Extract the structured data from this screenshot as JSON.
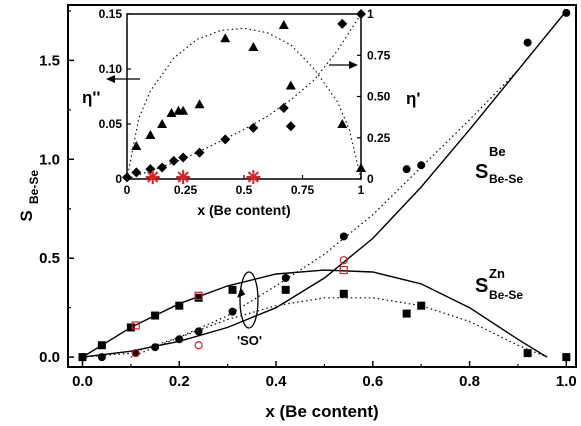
{
  "chart_data": [
    {
      "type": "scatter",
      "xlabel": "x (Be content)",
      "ylabel": "S",
      "ylabel_sub": "Be-Se",
      "xlim": [
        -0.03,
        1.02
      ],
      "ylim": [
        -0.05,
        1.78
      ],
      "x_ticks": [
        "0.0",
        "0.2",
        "0.4",
        "0.6",
        "0.8",
        "1.0"
      ],
      "y_ticks": [
        "0.0",
        "0.5",
        "1.0",
        "1.5"
      ],
      "series": [
        {
          "name": "S^Be_Be-Se",
          "marker": "filled-circle",
          "x": [
            0.0,
            0.04,
            0.11,
            0.15,
            0.2,
            0.24,
            0.31,
            0.42,
            0.54,
            0.67,
            0.7,
            0.92,
            1.0
          ],
          "y": [
            0.0,
            0.0,
            0.02,
            0.05,
            0.09,
            0.13,
            0.23,
            0.4,
            0.61,
            0.95,
            0.97,
            1.59,
            1.74
          ]
        },
        {
          "name": "S^Zn_Be-Se",
          "marker": "filled-square",
          "x": [
            0.0,
            0.04,
            0.1,
            0.15,
            0.2,
            0.24,
            0.31,
            0.42,
            0.54,
            0.67,
            0.7,
            0.92,
            1.0
          ],
          "y": [
            0.0,
            0.06,
            0.15,
            0.21,
            0.26,
            0.3,
            0.34,
            0.34,
            0.32,
            0.22,
            0.26,
            0.02,
            0.0
          ]
        },
        {
          "name": "open-circle",
          "marker": "open-circle",
          "color": "#d62020",
          "x": [
            0.11,
            0.24,
            0.54
          ],
          "y": [
            0.02,
            0.06,
            0.49
          ]
        },
        {
          "name": "open-square",
          "marker": "open-square",
          "color": "#d62020",
          "x": [
            0.11,
            0.24,
            0.54
          ],
          "y": [
            0.16,
            0.31,
            0.44
          ]
        },
        {
          "name": "solid-curve-Be",
          "style": "solid-line",
          "x": [
            0.0,
            0.1,
            0.2,
            0.3,
            0.4,
            0.5,
            0.6,
            0.7,
            0.8,
            0.9,
            1.0
          ],
          "y": [
            0.0,
            0.03,
            0.08,
            0.15,
            0.25,
            0.4,
            0.6,
            0.86,
            1.15,
            1.45,
            1.75
          ]
        },
        {
          "name": "solid-curve-Zn",
          "style": "solid-line",
          "x": [
            0.0,
            0.1,
            0.2,
            0.3,
            0.4,
            0.5,
            0.6,
            0.7,
            0.8,
            0.9,
            0.96
          ],
          "y": [
            0.0,
            0.15,
            0.27,
            0.36,
            0.42,
            0.44,
            0.43,
            0.37,
            0.25,
            0.09,
            0.0
          ]
        },
        {
          "name": "dotted-curve-Be",
          "style": "dotted-line",
          "x": [
            0.0,
            0.1,
            0.2,
            0.3,
            0.4,
            0.5,
            0.6,
            0.7,
            0.8,
            0.9,
            1.0
          ],
          "y": [
            0.0,
            0.02,
            0.1,
            0.21,
            0.36,
            0.52,
            0.72,
            0.96,
            1.2,
            1.45,
            1.75
          ]
        },
        {
          "name": "dotted-curve-Zn",
          "style": "dotted-line",
          "x": [
            0.1,
            0.2,
            0.3,
            0.4,
            0.5,
            0.6,
            0.7,
            0.8,
            0.9,
            0.96
          ],
          "y": [
            0.0,
            0.1,
            0.19,
            0.26,
            0.3,
            0.3,
            0.26,
            0.18,
            0.06,
            0.0
          ]
        }
      ],
      "annotations": {
        "label_be_main": "S",
        "label_be_sup": "Be",
        "label_be_sub": "Be-Se",
        "label_zn_main": "S",
        "label_zn_sup": "Zn",
        "label_zn_sub": "Be-Se",
        "label_so": "'SO'"
      }
    },
    {
      "type": "scatter",
      "inset": true,
      "xlabel": "x (Be content)",
      "ylabel_left": "η''",
      "ylabel_right": "η'",
      "xlim": [
        0,
        1
      ],
      "ylim_left": [
        0,
        0.15
      ],
      "ylim_right": [
        0,
        1
      ],
      "x_ticks": [
        "0",
        "0.25",
        "0.5",
        "0.75",
        "1"
      ],
      "y_left_ticks": [
        "0",
        "0.05",
        "0.10",
        "0.15"
      ],
      "y_right_ticks": [
        "0",
        "0.25",
        "0.50",
        "0.75",
        "1"
      ],
      "series": [
        {
          "name": "eta-double-prime",
          "axis": "left",
          "marker": "filled-triangle",
          "x": [
            0.04,
            0.1,
            0.15,
            0.19,
            0.22,
            0.24,
            0.31,
            0.42,
            0.54,
            0.67,
            0.7,
            0.92,
            1.0
          ],
          "y": [
            0.03,
            0.04,
            0.05,
            0.06,
            0.062,
            0.062,
            0.068,
            0.128,
            0.12,
            0.14,
            0.085,
            0.05,
            0.01
          ]
        },
        {
          "name": "eta-prime",
          "axis": "right",
          "marker": "filled-diamond",
          "x": [
            0.0,
            0.04,
            0.1,
            0.15,
            0.2,
            0.24,
            0.31,
            0.42,
            0.54,
            0.67,
            0.7,
            0.92,
            1.0
          ],
          "y": [
            0.01,
            0.04,
            0.06,
            0.07,
            0.11,
            0.13,
            0.16,
            0.24,
            0.31,
            0.43,
            0.32,
            0.94,
            1.0
          ]
        },
        {
          "name": "red-asterisk",
          "axis": "left",
          "marker": "asterisk",
          "color": "#e02020",
          "x": [
            0.11,
            0.24,
            0.54
          ],
          "y": [
            0.0,
            0.0,
            0.0
          ]
        },
        {
          "name": "dotted-arc",
          "axis": "left",
          "style": "dotted-line",
          "x": [
            0.0,
            0.05,
            0.1,
            0.2,
            0.3,
            0.4,
            0.5,
            0.6,
            0.7,
            0.8,
            0.9,
            0.95,
            1.0
          ],
          "y": [
            0.0,
            0.055,
            0.08,
            0.11,
            0.127,
            0.135,
            0.137,
            0.133,
            0.122,
            0.1,
            0.07,
            0.045,
            0.0
          ]
        },
        {
          "name": "dotted-line-right",
          "axis": "right",
          "style": "dotted-line",
          "x": [
            0.0,
            0.1,
            0.2,
            0.3,
            0.4,
            0.5,
            0.6,
            0.7,
            0.8,
            0.9,
            1.0
          ],
          "y": [
            0.0,
            0.05,
            0.1,
            0.16,
            0.23,
            0.3,
            0.38,
            0.48,
            0.6,
            0.78,
            1.0
          ]
        }
      ]
    }
  ]
}
